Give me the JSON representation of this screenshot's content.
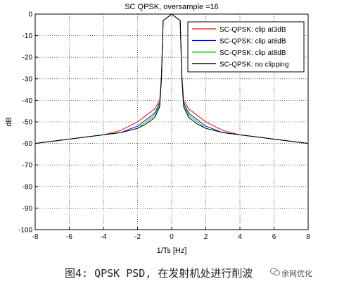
{
  "chart_data": {
    "type": "line",
    "title": "SC QPSK, oversample =16",
    "xlabel": "1/Ts [Hz]",
    "ylabel": "dB",
    "xlim": [
      -8,
      8
    ],
    "ylim": [
      -100,
      0
    ],
    "xticks": [
      -8,
      -6,
      -4,
      -2,
      0,
      2,
      4,
      6,
      8
    ],
    "yticks": [
      0,
      -10,
      -20,
      -30,
      -40,
      -50,
      -60,
      -70,
      -80,
      -90,
      -100
    ],
    "grid": true,
    "legend_position": "top-right",
    "series": [
      {
        "name": "SC-QPSK: clip at3dB",
        "color": "#ff0000",
        "points": [
          [
            -8,
            -60
          ],
          [
            -6,
            -58
          ],
          [
            -4,
            -56
          ],
          [
            -3,
            -54
          ],
          [
            -2,
            -50
          ],
          [
            -1.5,
            -47
          ],
          [
            -1,
            -44
          ],
          [
            -0.7,
            -40
          ],
          [
            -0.6,
            -28
          ],
          [
            -0.5,
            -3
          ],
          [
            0,
            0
          ],
          [
            0.5,
            -3
          ],
          [
            0.6,
            -28
          ],
          [
            0.7,
            -40
          ],
          [
            1,
            -44
          ],
          [
            1.5,
            -47
          ],
          [
            2,
            -50
          ],
          [
            3,
            -54
          ],
          [
            4,
            -56
          ],
          [
            6,
            -58
          ],
          [
            8,
            -60
          ]
        ]
      },
      {
        "name": "SC-QPSK: clip at6dB",
        "color": "#0000ff",
        "points": [
          [
            -8,
            -60
          ],
          [
            -6,
            -58
          ],
          [
            -4,
            -56
          ],
          [
            -3,
            -55
          ],
          [
            -2,
            -52
          ],
          [
            -1.5,
            -49
          ],
          [
            -1,
            -46
          ],
          [
            -0.7,
            -41
          ],
          [
            -0.6,
            -29
          ],
          [
            -0.5,
            -3
          ],
          [
            0,
            0
          ],
          [
            0.5,
            -3
          ],
          [
            0.6,
            -29
          ],
          [
            0.7,
            -41
          ],
          [
            1,
            -46
          ],
          [
            1.5,
            -49
          ],
          [
            2,
            -52
          ],
          [
            3,
            -55
          ],
          [
            4,
            -56
          ],
          [
            6,
            -58
          ],
          [
            8,
            -60
          ]
        ]
      },
      {
        "name": "SC-QPSK: clip at8dB",
        "color": "#00cc00",
        "points": [
          [
            -8,
            -60
          ],
          [
            -6,
            -58
          ],
          [
            -4,
            -56
          ],
          [
            -3,
            -55
          ],
          [
            -2,
            -53
          ],
          [
            -1.5,
            -50
          ],
          [
            -1,
            -47
          ],
          [
            -0.7,
            -42
          ],
          [
            -0.6,
            -30
          ],
          [
            -0.5,
            -3
          ],
          [
            0,
            0
          ],
          [
            0.5,
            -3
          ],
          [
            0.6,
            -30
          ],
          [
            0.7,
            -42
          ],
          [
            1,
            -47
          ],
          [
            1.5,
            -50
          ],
          [
            2,
            -53
          ],
          [
            3,
            -55
          ],
          [
            4,
            -56
          ],
          [
            6,
            -58
          ],
          [
            8,
            -60
          ]
        ]
      },
      {
        "name": "SC-QPSK: no clipping",
        "color": "#000000",
        "points": [
          [
            -8,
            -60
          ],
          [
            -6,
            -58
          ],
          [
            -4,
            -56
          ],
          [
            -3,
            -55
          ],
          [
            -2,
            -53
          ],
          [
            -1.5,
            -51
          ],
          [
            -1,
            -48
          ],
          [
            -0.7,
            -43
          ],
          [
            -0.6,
            -30
          ],
          [
            -0.5,
            -3
          ],
          [
            0,
            0
          ],
          [
            0.5,
            -3
          ],
          [
            0.6,
            -30
          ],
          [
            0.7,
            -43
          ],
          [
            1,
            -48
          ],
          [
            1.5,
            -51
          ],
          [
            2,
            -53
          ],
          [
            3,
            -55
          ],
          [
            4,
            -56
          ],
          [
            6,
            -58
          ],
          [
            8,
            -60
          ]
        ]
      }
    ]
  },
  "caption": "图4: QPSK PSD, 在发射机处进行削波",
  "watermark": "余网优化"
}
